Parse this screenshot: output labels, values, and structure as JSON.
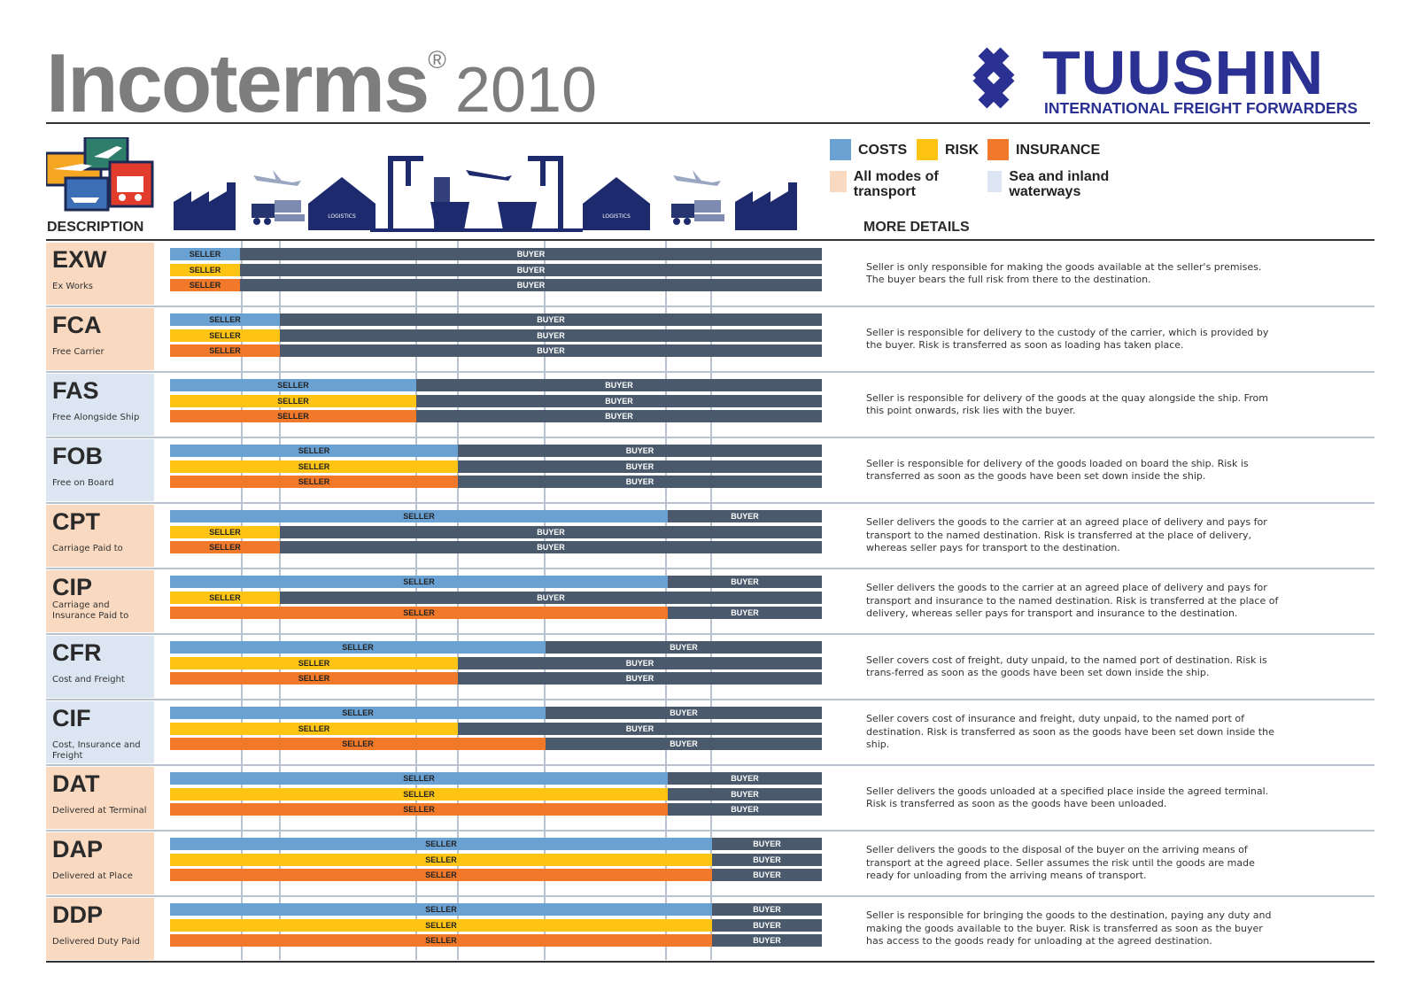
{
  "title": {
    "word": "Incoterms",
    "reg": "®",
    "year": "2010"
  },
  "logo": {
    "name": "TUUSHIN",
    "subtitle": "INTERNATIONAL FREIGHT FORWARDERS",
    "color": "#2a3193"
  },
  "headers": {
    "description": "DESCRIPTION",
    "more_details": "MORE DETAILS"
  },
  "icon_labels": {
    "logistics": "LOGISTICS"
  },
  "legend": {
    "costs": {
      "label": "COSTS",
      "color": "#6aa1d3"
    },
    "risk": {
      "label": "RISK",
      "color": "#fdc413"
    },
    "insurance": {
      "label": "INSURANCE",
      "color": "#f2792a"
    },
    "all_modes": {
      "label": "All modes of transport",
      "color": "#f9d9c0"
    },
    "sea_inland": {
      "label": "Sea and inland waterways",
      "color": "#dbe6f2"
    }
  },
  "colors": {
    "buyer": "#4a5a6c",
    "separator": "#b9c3cf"
  },
  "bar_labels": {
    "seller": "SELLER",
    "buyer": "BUYER"
  },
  "terms": [
    {
      "code": "EXW",
      "name": "Ex Works",
      "mode": "all",
      "transfer": [
        0.108,
        0.108,
        0.108
      ],
      "detail": "Seller is only responsible for making the goods available at the seller's premises. The buyer bears the full risk from there to the destination."
    },
    {
      "code": "FCA",
      "name": "Free Carrier",
      "mode": "all",
      "transfer": [
        0.168,
        0.168,
        0.168
      ],
      "detail": "Seller is responsible for delivery to the custody of the carrier, which is provided by the buyer. Risk is transferred as soon as loading has taken place."
    },
    {
      "code": "FAS",
      "name": "Free Alongside Ship",
      "mode": "sea",
      "transfer": [
        0.378,
        0.378,
        0.378
      ],
      "detail": "Seller is responsible for delivery of the goods at the quay alongside the ship. From this point onwards, risk lies with the buyer."
    },
    {
      "code": "FOB",
      "name": "Free on Board",
      "mode": "sea",
      "transfer": [
        0.441,
        0.441,
        0.441
      ],
      "detail": "Seller is responsible for delivery of the goods loaded on board the ship. Risk is transferred as soon as the goods have been set down inside the ship."
    },
    {
      "code": "CPT",
      "name": "Carriage Paid to",
      "mode": "all",
      "transfer": [
        0.763,
        0.168,
        0.168
      ],
      "detail": "Seller delivers the goods to the carrier at an agreed place of delivery and pays for transport to the named destination. Risk is transferred at the place of delivery, whereas seller pays for transport to the destination."
    },
    {
      "code": "CIP",
      "name": "Carriage and Insurance Paid to",
      "mode": "all",
      "transfer": [
        0.763,
        0.168,
        0.763
      ],
      "detail": "Seller delivers the goods to the carrier at an agreed place of delivery and pays for transport and insurance to the named destination. Risk is transferred at the place of delivery, whereas seller pays for transport and insurance to the destination."
    },
    {
      "code": "CFR",
      "name": "Cost and Freight",
      "mode": "sea",
      "transfer": [
        0.576,
        0.441,
        0.441
      ],
      "detail": "Seller covers cost of freight, duty unpaid, to the named port of destination. Risk is trans-ferred as soon as the goods have been set down inside the ship."
    },
    {
      "code": "CIF",
      "name": "Cost, Insurance and Freight",
      "mode": "sea",
      "transfer": [
        0.576,
        0.441,
        0.576
      ],
      "detail": "Seller covers cost of insurance and freight, duty unpaid, to the named port of destination. Risk is transferred as soon as the goods have been set down inside the ship."
    },
    {
      "code": "DAT",
      "name": "Delivered at Terminal",
      "mode": "all",
      "transfer": [
        0.763,
        0.763,
        0.763
      ],
      "detail": "Seller delivers the goods unloaded at a specified place inside the agreed terminal. Risk is transferred as soon as the goods have been unloaded."
    },
    {
      "code": "DAP",
      "name": "Delivered at Place",
      "mode": "all",
      "transfer": [
        0.832,
        0.832,
        0.832
      ],
      "detail": "Seller delivers the goods to the disposal of the buyer on the arriving means of transport at the agreed place. Seller assumes the risk until the goods are made ready for unloading from the arriving means of transport."
    },
    {
      "code": "DDP",
      "name": "Delivered Duty Paid",
      "mode": "all",
      "transfer": [
        0.832,
        0.832,
        0.832
      ],
      "detail": "Seller is responsible for bringing the goods to the destination, paying any duty and making the goods available to the buyer. Risk is transferred as soon as the buyer has access to the goods ready for unloading at the agreed destination."
    }
  ]
}
